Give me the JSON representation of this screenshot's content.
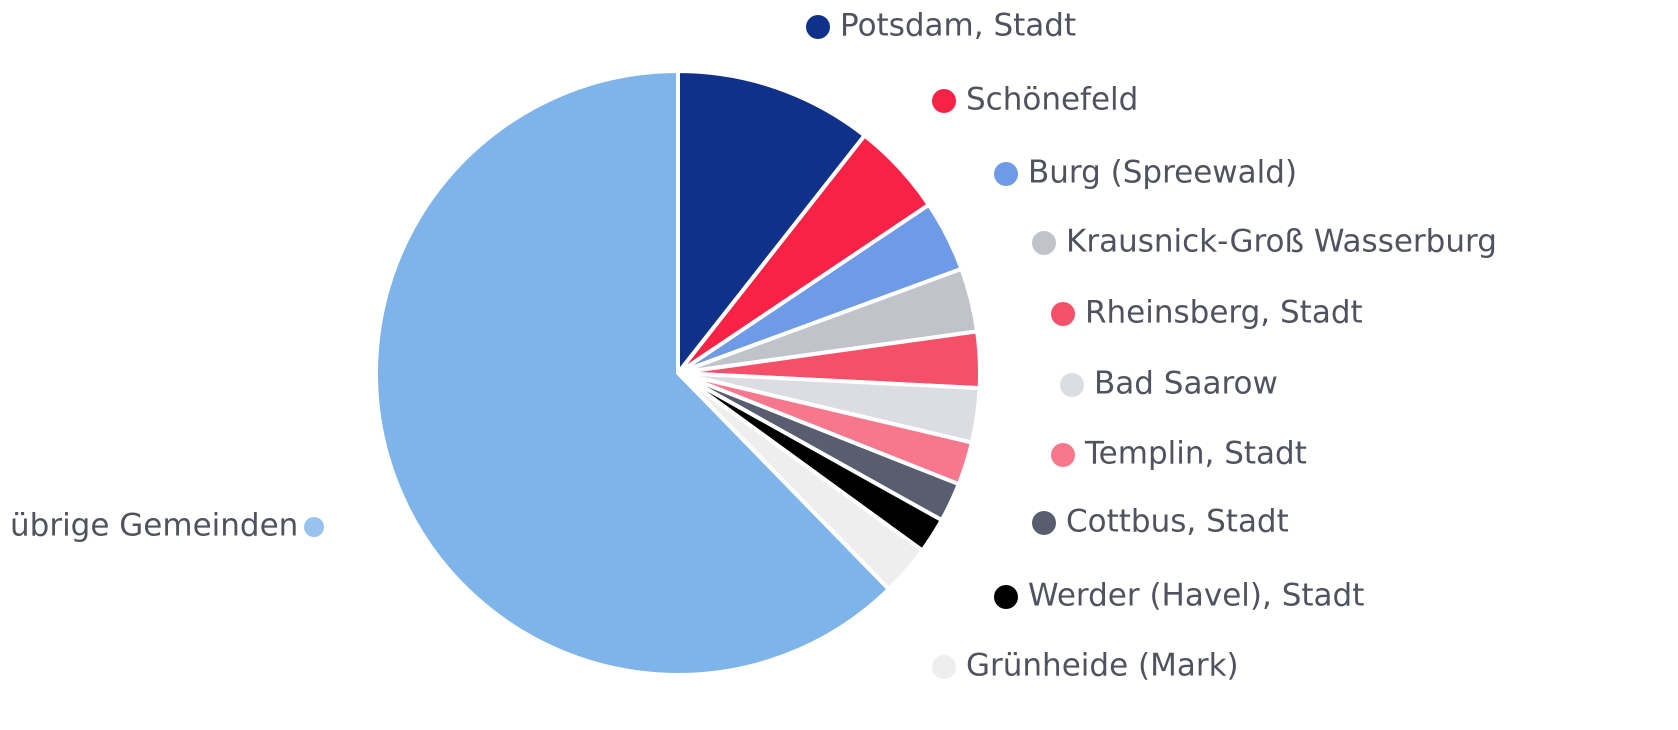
{
  "chart_data": {
    "type": "pie",
    "categories": [
      "Potsdam, Stadt",
      "Schönefeld",
      "Burg (Spreewald)",
      "Krausnick-Groß Wasserburg",
      "Rheinsberg, Stadt",
      "Bad Saarow",
      "Templin, Stadt",
      "Cottbus, Stadt",
      "Werder (Havel), Stadt",
      "Grünheide (Mark)",
      "übrige Gemeinden"
    ],
    "values": [
      10.6,
      5.0,
      3.8,
      3.4,
      3.0,
      2.9,
      2.3,
      2.1,
      1.9,
      2.7,
      62.3
    ],
    "colors": [
      "#10318a",
      "#f72246",
      "#6f9ae6",
      "#c1c3cb",
      "#f5506a",
      "#dcdde3",
      "#f7788c",
      "#585e6f",
      "#000000",
      "#eeeeee",
      "#7eb4ea"
    ]
  }
}
